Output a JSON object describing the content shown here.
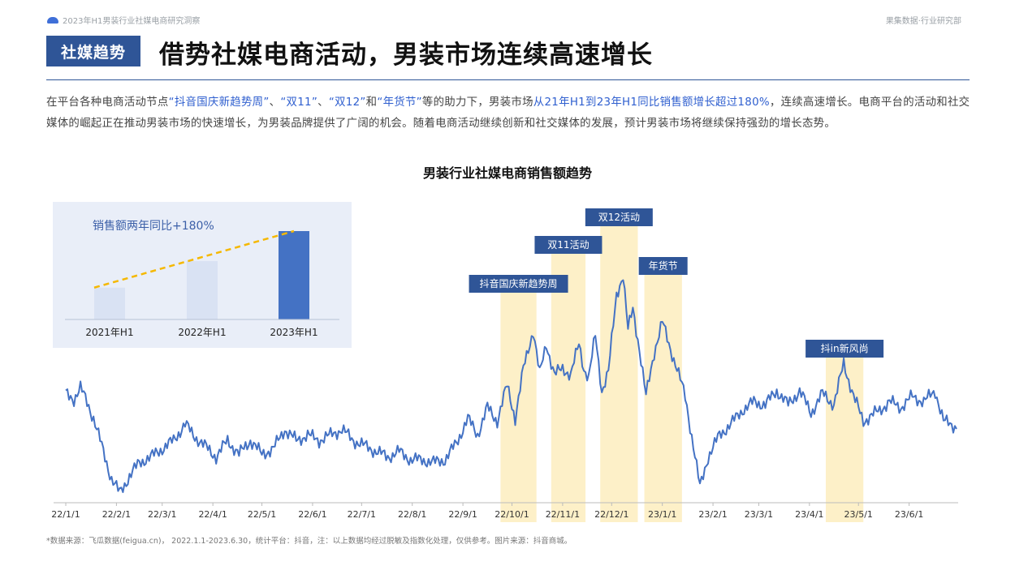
{
  "header": {
    "doc_title": "2023年H1男装行业社媒电商研究洞察",
    "source_brand": "果集数据·行业研究部",
    "tag": "社媒趋势",
    "headline": "借势社媒电商活动，男装市场连续高速增长"
  },
  "description": {
    "p1": "在平台各种电商活动节点",
    "q1": "“抖音国庆新趋势周”",
    "sep1": "、",
    "q2": "“双11”",
    "sep2": "、",
    "q3": "“双12”",
    "and": "和",
    "q4": "“年货节”",
    "p2": "等的助力下，男装市场",
    "highlight": "从21年H1到23年H1同比销售额增长超过180%",
    "p3": "，连续高速增长。电商平台的活动和社交媒体的崛起正在推动男装市场的快速增长，为男装品牌提供了广阔的机会。随着电商活动继续创新和社交媒体的发展，预计男装市场将继续保持强劲的增长态势。"
  },
  "chart_title": "男装行业社媒电商销售额趋势",
  "source_note": "*数据来源：飞瓜数据(feigua.cn)， 2022.1.1-2023.6.30，统计平台：抖音，注：以上数据均经过脱敏及指数化处理，仅供参考。图片来源：抖音商城。",
  "colors": {
    "line": "#4472c4",
    "band": "#fdf0c8",
    "label_bg": "#2f5597",
    "inset_bg": "#e9eef8",
    "bar_light": "#d9e2f3",
    "bar_dark": "#4472c4",
    "trend": "#f5b800"
  },
  "chart_data": [
    {
      "type": "line",
      "title": "男装行业社媒电商销售额趋势",
      "x_ticks": [
        "22/1/1",
        "22/2/1",
        "22/3/1",
        "22/4/1",
        "22/5/1",
        "22/6/1",
        "22/7/1",
        "22/8/1",
        "22/9/1",
        "22/10/1",
        "22/11/1",
        "22/12/1",
        "23/1/1",
        "23/2/1",
        "23/3/1",
        "23/4/1",
        "23/5/1",
        "23/6/1"
      ],
      "x_range": [
        "2022-01-01",
        "2023-06-30"
      ],
      "y_range": [
        0,
        100
      ],
      "y_axis_labels": "none (indexed)",
      "series": [
        {
          "anchors": [
            [
              "2022-01-01",
              39
            ],
            [
              "2022-01-06",
              37
            ],
            [
              "2022-01-10",
              41
            ],
            [
              "2022-01-14",
              36
            ],
            [
              "2022-01-18",
              30
            ],
            [
              "2022-01-23",
              20
            ],
            [
              "2022-01-29",
              8
            ],
            [
              "2022-02-03",
              3
            ],
            [
              "2022-02-09",
              9
            ],
            [
              "2022-02-15",
              14
            ],
            [
              "2022-02-22",
              16
            ],
            [
              "2022-03-01",
              19
            ],
            [
              "2022-03-08",
              22
            ],
            [
              "2022-03-15",
              28
            ],
            [
              "2022-03-20",
              24
            ],
            [
              "2022-03-27",
              20
            ],
            [
              "2022-04-03",
              16
            ],
            [
              "2022-04-10",
              22
            ],
            [
              "2022-04-17",
              17
            ],
            [
              "2022-04-24",
              22
            ],
            [
              "2022-05-01",
              17
            ],
            [
              "2022-05-08",
              19
            ],
            [
              "2022-05-15",
              26
            ],
            [
              "2022-05-22",
              22
            ],
            [
              "2022-05-29",
              24
            ],
            [
              "2022-06-05",
              22
            ],
            [
              "2022-06-12",
              24
            ],
            [
              "2022-06-19",
              26
            ],
            [
              "2022-06-26",
              22
            ],
            [
              "2022-07-03",
              20
            ],
            [
              "2022-07-10",
              18
            ],
            [
              "2022-07-17",
              16
            ],
            [
              "2022-07-24",
              18
            ],
            [
              "2022-07-31",
              15
            ],
            [
              "2022-08-07",
              15
            ],
            [
              "2022-08-14",
              14
            ],
            [
              "2022-08-21",
              15
            ],
            [
              "2022-08-28",
              21
            ],
            [
              "2022-09-04",
              30
            ],
            [
              "2022-09-10",
              24
            ],
            [
              "2022-09-16",
              34
            ],
            [
              "2022-09-22",
              29
            ],
            [
              "2022-09-28",
              42
            ],
            [
              "2022-10-03",
              30
            ],
            [
              "2022-10-08",
              48
            ],
            [
              "2022-10-14",
              62
            ],
            [
              "2022-10-18",
              46
            ],
            [
              "2022-10-22",
              57
            ],
            [
              "2022-10-27",
              46
            ],
            [
              "2022-11-01",
              48
            ],
            [
              "2022-11-06",
              46
            ],
            [
              "2022-11-11",
              57
            ],
            [
              "2022-11-14",
              48
            ],
            [
              "2022-11-17",
              45
            ],
            [
              "2022-11-21",
              60
            ],
            [
              "2022-11-25",
              40
            ],
            [
              "2022-11-29",
              47
            ],
            [
              "2022-12-04",
              75
            ],
            [
              "2022-12-08",
              82
            ],
            [
              "2022-12-11",
              62
            ],
            [
              "2022-12-14",
              70
            ],
            [
              "2022-12-18",
              55
            ],
            [
              "2022-12-22",
              38
            ],
            [
              "2022-12-27",
              54
            ],
            [
              "2023-01-01",
              65
            ],
            [
              "2023-01-05",
              57
            ],
            [
              "2023-01-10",
              48
            ],
            [
              "2023-01-15",
              38
            ],
            [
              "2023-01-20",
              20
            ],
            [
              "2023-01-24",
              5
            ],
            [
              "2023-01-29",
              16
            ],
            [
              "2023-02-05",
              24
            ],
            [
              "2023-02-12",
              28
            ],
            [
              "2023-02-19",
              33
            ],
            [
              "2023-02-26",
              36
            ],
            [
              "2023-03-05",
              35
            ],
            [
              "2023-03-12",
              40
            ],
            [
              "2023-03-19",
              35
            ],
            [
              "2023-03-26",
              40
            ],
            [
              "2023-04-02",
              32
            ],
            [
              "2023-04-09",
              39
            ],
            [
              "2023-04-16",
              35
            ],
            [
              "2023-04-22",
              50
            ],
            [
              "2023-04-28",
              38
            ],
            [
              "2023-05-04",
              29
            ],
            [
              "2023-05-09",
              31
            ],
            [
              "2023-05-14",
              33
            ],
            [
              "2023-05-20",
              36
            ],
            [
              "2023-05-27",
              34
            ],
            [
              "2023-06-03",
              38
            ],
            [
              "2023-06-10",
              36
            ],
            [
              "2023-06-17",
              40
            ],
            [
              "2023-06-22",
              29
            ],
            [
              "2023-06-30",
              27
            ]
          ]
        }
      ],
      "annotations": [
        {
          "label": "抖音国庆新趋势周",
          "start": "2022-09-24",
          "end": "2022-10-16",
          "level": 1
        },
        {
          "label": "双11活动",
          "start": "2022-10-25",
          "end": "2022-11-15",
          "level": 3
        },
        {
          "label": "双12活动",
          "start": "2022-11-24",
          "end": "2022-12-17",
          "level": 4
        },
        {
          "label": "年货节",
          "start": "2022-12-21",
          "end": "2023-01-13",
          "level": 2
        },
        {
          "label": "抖in新风尚",
          "start": "2023-04-11",
          "end": "2023-05-04",
          "level": 0
        }
      ]
    },
    {
      "type": "bar",
      "title": "销售额两年同比+180%",
      "categories": [
        "2021年H1",
        "2022年H1",
        "2023年H1"
      ],
      "values": [
        36,
        66,
        100
      ],
      "ylim": [
        0,
        100
      ],
      "trend_line": "dashed"
    }
  ]
}
